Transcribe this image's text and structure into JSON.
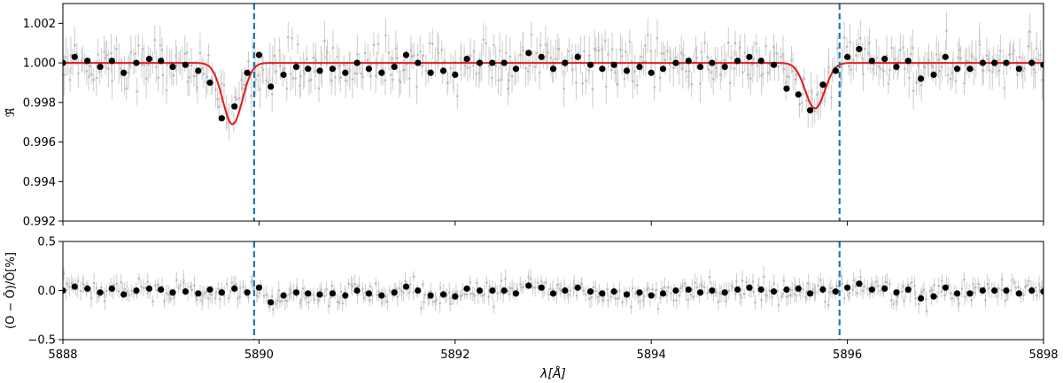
{
  "chart_data": [
    {
      "type": "scatter",
      "panel": "top",
      "ylabel": "ℜ̃",
      "xlim": [
        5888,
        5898
      ],
      "ylim": [
        0.992,
        1.003
      ],
      "xticks": [
        5888,
        5890,
        5892,
        5894,
        5896,
        5898
      ],
      "xtick_labels_shown": false,
      "yticks": [
        0.992,
        0.994,
        0.996,
        0.998,
        1.0,
        1.002
      ],
      "ytick_labels": [
        "0.992",
        "0.994",
        "0.996",
        "0.998",
        "1.000",
        "1.002"
      ],
      "grid": false,
      "series": [
        {
          "kind": "binned-points",
          "color": "#000000",
          "x": [
            5888.0,
            5888.12,
            5888.25,
            5888.38,
            5888.5,
            5888.62,
            5888.75,
            5888.88,
            5889.0,
            5889.12,
            5889.25,
            5889.38,
            5889.5,
            5889.62,
            5889.75,
            5889.88,
            5890.0,
            5890.12,
            5890.25,
            5890.38,
            5890.5,
            5890.62,
            5890.75,
            5890.88,
            5891.0,
            5891.12,
            5891.25,
            5891.38,
            5891.5,
            5891.62,
            5891.75,
            5891.88,
            5892.0,
            5892.12,
            5892.25,
            5892.38,
            5892.5,
            5892.62,
            5892.75,
            5892.88,
            5893.0,
            5893.12,
            5893.25,
            5893.38,
            5893.5,
            5893.62,
            5893.75,
            5893.88,
            5894.0,
            5894.12,
            5894.25,
            5894.38,
            5894.5,
            5894.62,
            5894.75,
            5894.88,
            5895.0,
            5895.12,
            5895.25,
            5895.38,
            5895.5,
            5895.62,
            5895.75,
            5895.88,
            5896.0,
            5896.12,
            5896.25,
            5896.38,
            5896.5,
            5896.62,
            5896.75,
            5896.88,
            5897.0,
            5897.12,
            5897.25,
            5897.38,
            5897.5,
            5897.62,
            5897.75,
            5897.88,
            5898.0
          ],
          "y": [
            1.0,
            1.0003,
            1.0001,
            0.9998,
            1.0001,
            0.9995,
            1.0,
            1.0002,
            1.0001,
            0.9998,
            0.9999,
            0.9996,
            0.999,
            0.9972,
            0.9978,
            0.9995,
            1.0004,
            0.9988,
            0.9994,
            0.9998,
            0.9997,
            0.9996,
            0.9997,
            0.9995,
            1.0,
            0.9997,
            0.9995,
            0.9998,
            1.0004,
            1.0,
            0.9995,
            0.9996,
            0.9994,
            1.0002,
            1.0,
            1.0,
            1.0,
            0.9997,
            1.0005,
            1.0003,
            0.9997,
            1.0,
            1.0003,
            0.9999,
            0.9997,
            0.9999,
            0.9996,
            0.9998,
            0.9995,
            0.9997,
            1.0,
            1.0001,
            0.9998,
            1.0,
            0.9998,
            1.0001,
            1.0003,
            1.0001,
            0.9999,
            0.9987,
            0.9984,
            0.9976,
            0.9989,
            0.9996,
            1.0003,
            1.0007,
            1.0001,
            1.0002,
            0.9998,
            1.0001,
            0.9992,
            0.9994,
            1.0003,
            0.9997,
            0.9997,
            1.0,
            1.0,
            1.0,
            0.9997,
            1.0,
            0.9999
          ]
        },
        {
          "kind": "model-line",
          "color": "#e41a1c",
          "baseline": 1.0,
          "lines": [
            {
              "center": 5889.73,
              "depth": 0.0031,
              "sigma": 0.1
            },
            {
              "center": 5895.67,
              "depth": 0.0023,
              "sigma": 0.1
            }
          ]
        },
        {
          "kind": "unbinned-data",
          "color": "#cccccc",
          "scatter": 0.0006
        }
      ],
      "vlines": [
        5889.95,
        5895.92
      ],
      "vline_color": "#1f77b4",
      "vline_style": "dashed"
    },
    {
      "type": "scatter",
      "panel": "bottom",
      "xlabel": "λ[Å]",
      "ylabel": "(O − Ō)/Ō[%]",
      "xlim": [
        5888,
        5898
      ],
      "ylim": [
        -0.5,
        0.5
      ],
      "xticks": [
        5888,
        5890,
        5892,
        5894,
        5896,
        5898
      ],
      "xtick_labels": [
        "5888",
        "5890",
        "5892",
        "5894",
        "5896",
        "5898"
      ],
      "yticks": [
        -0.5,
        0.0,
        0.5
      ],
      "ytick_labels": [
        "−0.5",
        "0.0",
        "0.5"
      ],
      "grid": false,
      "series": [
        {
          "kind": "residual-points",
          "color": "#000000",
          "x": [
            5888.0,
            5888.12,
            5888.25,
            5888.38,
            5888.5,
            5888.62,
            5888.75,
            5888.88,
            5889.0,
            5889.12,
            5889.25,
            5889.38,
            5889.5,
            5889.62,
            5889.75,
            5889.88,
            5890.0,
            5890.12,
            5890.25,
            5890.38,
            5890.5,
            5890.62,
            5890.75,
            5890.88,
            5891.0,
            5891.12,
            5891.25,
            5891.38,
            5891.5,
            5891.62,
            5891.75,
            5891.88,
            5892.0,
            5892.12,
            5892.25,
            5892.38,
            5892.5,
            5892.62,
            5892.75,
            5892.88,
            5893.0,
            5893.12,
            5893.25,
            5893.38,
            5893.5,
            5893.62,
            5893.75,
            5893.88,
            5894.0,
            5894.12,
            5894.25,
            5894.38,
            5894.5,
            5894.62,
            5894.75,
            5894.88,
            5895.0,
            5895.12,
            5895.25,
            5895.38,
            5895.5,
            5895.62,
            5895.75,
            5895.88,
            5896.0,
            5896.12,
            5896.25,
            5896.38,
            5896.5,
            5896.62,
            5896.75,
            5896.88,
            5897.0,
            5897.12,
            5897.25,
            5897.38,
            5897.5,
            5897.62,
            5897.75,
            5897.88,
            5898.0
          ],
          "y": [
            0.0,
            0.04,
            0.02,
            -0.02,
            0.02,
            -0.04,
            0.0,
            0.02,
            0.01,
            -0.02,
            -0.01,
            -0.03,
            0.01,
            -0.02,
            0.02,
            -0.02,
            0.03,
            -0.12,
            -0.05,
            -0.02,
            -0.03,
            -0.04,
            -0.03,
            -0.05,
            0.0,
            -0.03,
            -0.05,
            -0.02,
            0.04,
            0.0,
            -0.05,
            -0.04,
            -0.06,
            0.02,
            0.0,
            0.0,
            0.0,
            -0.03,
            0.05,
            0.03,
            -0.03,
            0.0,
            0.03,
            -0.01,
            -0.03,
            -0.01,
            -0.04,
            -0.02,
            -0.05,
            -0.03,
            0.0,
            0.01,
            -0.02,
            0.0,
            -0.02,
            0.01,
            0.03,
            0.01,
            -0.01,
            0.01,
            0.02,
            -0.03,
            0.01,
            -0.01,
            0.03,
            0.07,
            0.01,
            0.02,
            -0.02,
            0.01,
            -0.08,
            -0.06,
            0.03,
            -0.03,
            -0.03,
            0.0,
            0.0,
            0.0,
            -0.03,
            0.0,
            -0.01
          ]
        },
        {
          "kind": "unbinned-data",
          "color": "#cccccc",
          "scatter": 0.06
        }
      ],
      "vlines": [
        5889.95,
        5895.92
      ],
      "vline_color": "#1f77b4",
      "vline_style": "dashed"
    }
  ]
}
